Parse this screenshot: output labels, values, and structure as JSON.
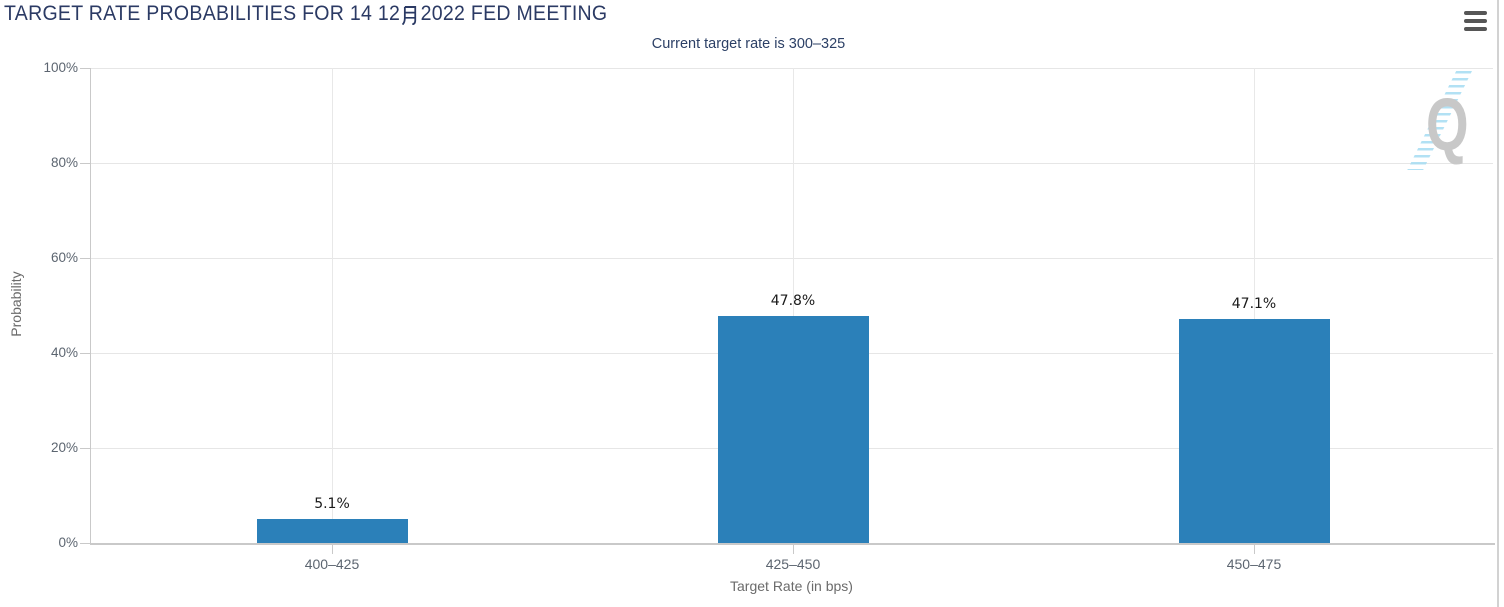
{
  "header": {
    "title": "TARGET RATE PROBABILITIES FOR 14 12月 2022 FED MEETING",
    "title_before_month": "TARGET RATE PROBABILITIES FOR 14 12",
    "title_month_char": "月",
    "title_after_month": "2022 FED MEETING",
    "subtitle": "Current target rate is 300–325"
  },
  "chart_data": {
    "type": "bar",
    "title": "TARGET RATE PROBABILITIES FOR 14 12月 2022 FED MEETING",
    "subtitle": "Current target rate is 300–325",
    "categories": [
      "400–425",
      "425–450",
      "450–475"
    ],
    "values": [
      5.1,
      47.8,
      47.1
    ],
    "data_labels": [
      "5.1%",
      "47.8%",
      "47.1%"
    ],
    "xlabel": "Target Rate (in bps)",
    "ylabel": "Probability",
    "ylim": [
      0,
      100
    ],
    "ytick_step": 20,
    "ytick_labels": [
      "0%",
      "20%",
      "40%",
      "60%",
      "80%",
      "100%"
    ],
    "grid": true,
    "legend": "none",
    "bar_color": "#2b80b9",
    "watermark_letter": "Q"
  },
  "colors": {
    "title_text": "#2b3a64",
    "subtitle_text": "#2c4066",
    "bar": "#2b80b9",
    "axis_label_text": "#5c6570",
    "axis_title_text": "#6b6b6b",
    "gridline": "#e6e6e6",
    "axis_line": "#c9c9c9",
    "data_label_text": "#1a1a1a",
    "menu_icon": "#565656",
    "watermark_q": "#c8c8c8",
    "watermark_dashes": "#a5dcf2"
  }
}
